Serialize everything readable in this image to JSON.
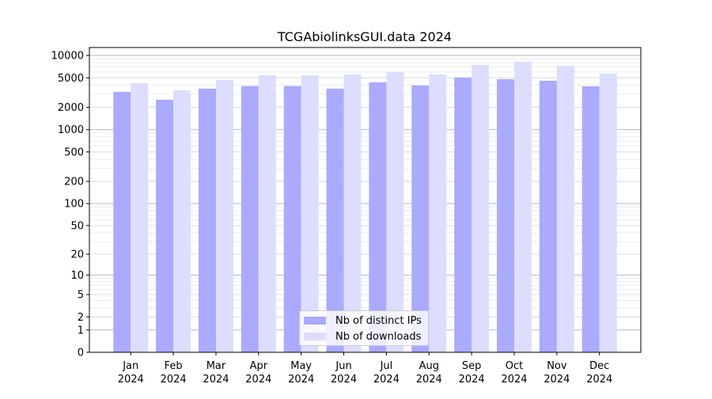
{
  "chart_data": {
    "type": "bar",
    "title": "TCGAbiolinksGUI.data 2024",
    "xlabel": "",
    "ylabel": "",
    "yscale": "log10(1+y) function scale",
    "ylim": [
      0,
      12800
    ],
    "yticks": [
      0,
      1,
      2,
      5,
      10,
      20,
      50,
      100,
      200,
      500,
      1000,
      2000,
      5000,
      10000
    ],
    "ytick_labels": [
      "0",
      "1",
      "2",
      "5",
      "10",
      "20",
      "50",
      "100",
      "200",
      "500",
      "1000",
      "2000",
      "5000",
      "10000"
    ],
    "categories": [
      "Jan\n2024",
      "Feb\n2024",
      "Mar\n2024",
      "Apr\n2024",
      "May\n2024",
      "Jun\n2024",
      "Jul\n2024",
      "Aug\n2024",
      "Sep\n2024",
      "Oct\n2024",
      "Nov\n2024",
      "Dec\n2024"
    ],
    "series": [
      {
        "name": "Nb of distinct IPs",
        "color": "#aaaaff",
        "values": [
          3230,
          2530,
          3570,
          3870,
          3870,
          3570,
          4340,
          3940,
          5030,
          4790,
          4560,
          3840
        ]
      },
      {
        "name": "Nb of downloads",
        "color": "#ddddff",
        "values": [
          4240,
          3390,
          4670,
          5410,
          5410,
          5550,
          5970,
          5550,
          7450,
          8220,
          7270,
          5690
        ]
      }
    ],
    "grid": true,
    "legend_position": "lower center"
  }
}
